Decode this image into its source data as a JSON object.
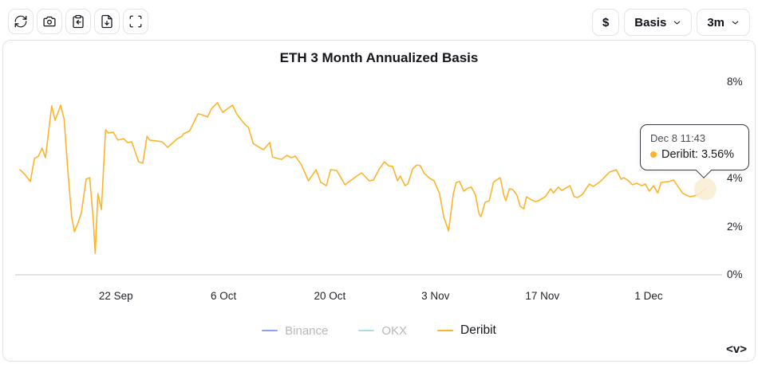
{
  "toolbar": {
    "icon_buttons": [
      {
        "icon": "refresh-icon"
      },
      {
        "icon": "camera-icon"
      },
      {
        "icon": "clipboard-arrow-icon"
      },
      {
        "icon": "file-download-icon"
      },
      {
        "icon": "fullscreen-icon"
      }
    ]
  },
  "controls": {
    "currency_label": "$",
    "metric_dropdown_value": "Basis",
    "range_dropdown_value": "3m"
  },
  "chart": {
    "title": "ETH 3 Month Annualized Basis"
  },
  "tooltip": {
    "timestamp": "Dec 8 11:43",
    "series": "Deribit",
    "value": "3.56%",
    "label": "Deribit: 3.56%",
    "dot_color": "#fbb42c"
  },
  "legend": {
    "items": [
      {
        "label": "Binance",
        "color": "#8f9ef3",
        "active": false
      },
      {
        "label": "OKX",
        "color": "#a9dfe2",
        "active": false
      },
      {
        "label": "Deribit",
        "color": "#fbb42c",
        "active": true
      }
    ]
  },
  "footer": {
    "logo_text": "<v>"
  },
  "chart_data": {
    "type": "line",
    "title": "ETH 3 Month Annualized Basis",
    "grid": false,
    "legend_position": "bottom",
    "y_axis": {
      "unit": "%",
      "range": [
        0,
        8.3
      ],
      "ticks": [
        {
          "label": "0%",
          "v": 0
        },
        {
          "label": "2%",
          "v": 2
        },
        {
          "label": "4%",
          "v": 4
        },
        {
          "label": "6%",
          "v": 6
        },
        {
          "label": "8%",
          "v": 8
        }
      ]
    },
    "x_axis": {
      "ticks": [
        {
          "label": "22 Sep",
          "t": 13.9
        },
        {
          "label": "6 Oct",
          "t": 29.5
        },
        {
          "label": "20 Oct",
          "t": 44.9
        },
        {
          "label": "3 Nov",
          "t": 60.2
        },
        {
          "label": "17 Nov",
          "t": 75.7
        },
        {
          "label": "1 Dec",
          "t": 91.1
        }
      ]
    },
    "disabled_series": [
      "Binance",
      "OKX"
    ],
    "series": [
      {
        "name": "Deribit",
        "color": "#fbb42c",
        "points": [
          [
            0,
            4.36
          ],
          [
            0.7,
            4.17
          ],
          [
            1.5,
            3.87
          ],
          [
            2.1,
            4.83
          ],
          [
            2.7,
            4.93
          ],
          [
            3.2,
            5.26
          ],
          [
            3.7,
            4.86
          ],
          [
            4.6,
            7.01
          ],
          [
            5.1,
            6.41
          ],
          [
            5.9,
            7.04
          ],
          [
            6.4,
            6.45
          ],
          [
            6.9,
            4.46
          ],
          [
            7.5,
            2.38
          ],
          [
            7.9,
            1.79
          ],
          [
            8.4,
            2.15
          ],
          [
            8.9,
            2.58
          ],
          [
            9.6,
            3.97
          ],
          [
            10.1,
            4.03
          ],
          [
            10.6,
            2.38
          ],
          [
            10.9,
            0.89
          ],
          [
            11.3,
            3.37
          ],
          [
            11.8,
            2.71
          ],
          [
            12.4,
            6.02
          ],
          [
            12.8,
            5.89
          ],
          [
            13.5,
            5.92
          ],
          [
            14.2,
            5.59
          ],
          [
            15,
            5.65
          ],
          [
            15.6,
            5.49
          ],
          [
            16.2,
            5.52
          ],
          [
            17.2,
            4.69
          ],
          [
            17.8,
            4.63
          ],
          [
            18.4,
            5.75
          ],
          [
            18.8,
            5.59
          ],
          [
            19.9,
            5.55
          ],
          [
            20.6,
            5.52
          ],
          [
            21.4,
            5.29
          ],
          [
            22.8,
            5.65
          ],
          [
            23.5,
            5.75
          ],
          [
            23.7,
            5.85
          ],
          [
            24.6,
            5.98
          ],
          [
            25.8,
            6.68
          ],
          [
            26.4,
            6.64
          ],
          [
            27.2,
            6.55
          ],
          [
            27.7,
            6.88
          ],
          [
            28.6,
            7.14
          ],
          [
            29.4,
            6.74
          ],
          [
            29.8,
            6.84
          ],
          [
            30.8,
            7.04
          ],
          [
            31.4,
            6.68
          ],
          [
            32,
            6.45
          ],
          [
            32.7,
            6.21
          ],
          [
            33.1,
            6.12
          ],
          [
            33.8,
            5.45
          ],
          [
            34.3,
            5.36
          ],
          [
            35.3,
            5.19
          ],
          [
            36.2,
            5.49
          ],
          [
            36.6,
            4.89
          ],
          [
            37.3,
            4.83
          ],
          [
            37.9,
            4.79
          ],
          [
            38.7,
            4.96
          ],
          [
            39.3,
            4.86
          ],
          [
            39.9,
            4.93
          ],
          [
            40.8,
            4.56
          ],
          [
            41.8,
            3.9
          ],
          [
            42.9,
            4.36
          ],
          [
            43.6,
            3.83
          ],
          [
            44.4,
            3.7
          ],
          [
            45,
            4.36
          ],
          [
            45.9,
            4.33
          ],
          [
            47.1,
            3.74
          ],
          [
            48.2,
            3.97
          ],
          [
            48.8,
            4.1
          ],
          [
            49.5,
            4.23
          ],
          [
            50.6,
            3.9
          ],
          [
            51.2,
            3.93
          ],
          [
            52,
            4.36
          ],
          [
            52.8,
            4.69
          ],
          [
            53.4,
            4.53
          ],
          [
            54,
            4.5
          ],
          [
            54.7,
            3.9
          ],
          [
            55.1,
            4.1
          ],
          [
            55.8,
            3.7
          ],
          [
            56.2,
            3.77
          ],
          [
            56.9,
            4.4
          ],
          [
            57.5,
            4.56
          ],
          [
            58,
            4.53
          ],
          [
            58.6,
            4.2
          ],
          [
            59.4,
            4
          ],
          [
            60,
            3.9
          ],
          [
            60.8,
            3.37
          ],
          [
            61.4,
            2.41
          ],
          [
            62.1,
            1.82
          ],
          [
            62.8,
            3.37
          ],
          [
            63.2,
            3.83
          ],
          [
            63.7,
            3.87
          ],
          [
            64.3,
            3.47
          ],
          [
            64.9,
            3.6
          ],
          [
            65.4,
            3.64
          ],
          [
            66,
            3.31
          ],
          [
            66.5,
            2.55
          ],
          [
            66.8,
            2.41
          ],
          [
            67.4,
            3.01
          ],
          [
            68,
            3.07
          ],
          [
            68.6,
            3.83
          ],
          [
            69,
            3.93
          ],
          [
            69.6,
            4.03
          ],
          [
            70.1,
            3.31
          ],
          [
            70.4,
            3.07
          ],
          [
            70.9,
            3.57
          ],
          [
            71.4,
            3.54
          ],
          [
            72,
            3.31
          ],
          [
            72.5,
            2.84
          ],
          [
            73,
            2.74
          ],
          [
            73.4,
            3.24
          ],
          [
            74.1,
            3.11
          ],
          [
            74.7,
            3.04
          ],
          [
            75.1,
            3.07
          ],
          [
            76.1,
            3.24
          ],
          [
            76.9,
            3.57
          ],
          [
            77.3,
            3.4
          ],
          [
            78,
            3.64
          ],
          [
            78.5,
            3.5
          ],
          [
            79.1,
            3.6
          ],
          [
            79.7,
            3.7
          ],
          [
            80.3,
            3.24
          ],
          [
            80.8,
            3.21
          ],
          [
            81.5,
            3.34
          ],
          [
            82.5,
            3.77
          ],
          [
            83.1,
            3.67
          ],
          [
            84.2,
            3.9
          ],
          [
            85.4,
            4.26
          ],
          [
            86.4,
            4.36
          ],
          [
            87.1,
            3.97
          ],
          [
            87.5,
            4.03
          ],
          [
            88.2,
            3.9
          ],
          [
            88.7,
            3.74
          ],
          [
            89.4,
            3.8
          ],
          [
            90.1,
            3.7
          ],
          [
            90.6,
            3.77
          ],
          [
            91.2,
            3.47
          ],
          [
            91.8,
            3.7
          ],
          [
            92.4,
            3.4
          ],
          [
            92.9,
            3.83
          ],
          [
            94,
            3.87
          ],
          [
            94.7,
            3.93
          ],
          [
            95.4,
            3.64
          ],
          [
            96,
            3.4
          ],
          [
            96.5,
            3.31
          ],
          [
            97.1,
            3.24
          ],
          [
            97.7,
            3.27
          ],
          [
            98.6,
            3.4
          ],
          [
            99.3,
            3.56
          ]
        ]
      }
    ],
    "highlight": {
      "t": 99.3,
      "v": 3.56,
      "display": "3.56%",
      "halo_color": "#f9edd2"
    }
  }
}
